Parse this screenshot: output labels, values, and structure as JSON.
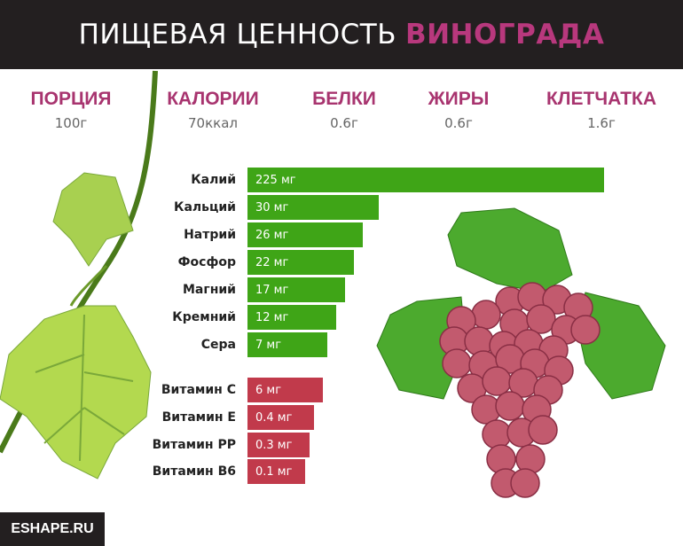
{
  "header": {
    "title": "ПИЩЕВАЯ ЦЕННОСТЬ",
    "title_highlight": "ВИНОГРАДА"
  },
  "nutrition": [
    {
      "label": "ПОРЦИЯ",
      "value": "100г"
    },
    {
      "label": "КАЛОРИИ",
      "value": "70ккал"
    },
    {
      "label": "БЕЛКИ",
      "value": "0.6г"
    },
    {
      "label": "ЖИРЫ",
      "value": "0.6г"
    },
    {
      "label": "КЛЕТЧАТКА",
      "value": "1.6г"
    }
  ],
  "minerals": [
    {
      "name": "Калий",
      "amount": "225 мг"
    },
    {
      "name": "Кальций",
      "amount": "30 мг"
    },
    {
      "name": "Натрий",
      "amount": "26 мг"
    },
    {
      "name": "Фосфор",
      "amount": "22 мг"
    },
    {
      "name": "Магний",
      "amount": "17 мг"
    },
    {
      "name": "Кремний",
      "amount": "12 мг"
    },
    {
      "name": "Сера",
      "amount": "7 мг"
    }
  ],
  "vitamins": [
    {
      "name": "Витамин C",
      "amount": "6 мг"
    },
    {
      "name": "Витамин E",
      "amount": "0.4 мг"
    },
    {
      "name": "Витамин PP",
      "amount": "0.3 мг"
    },
    {
      "name": "Витамин B6",
      "amount": "0.1 мг"
    }
  ],
  "footer": {
    "text": "ESHAPE.RU"
  }
}
